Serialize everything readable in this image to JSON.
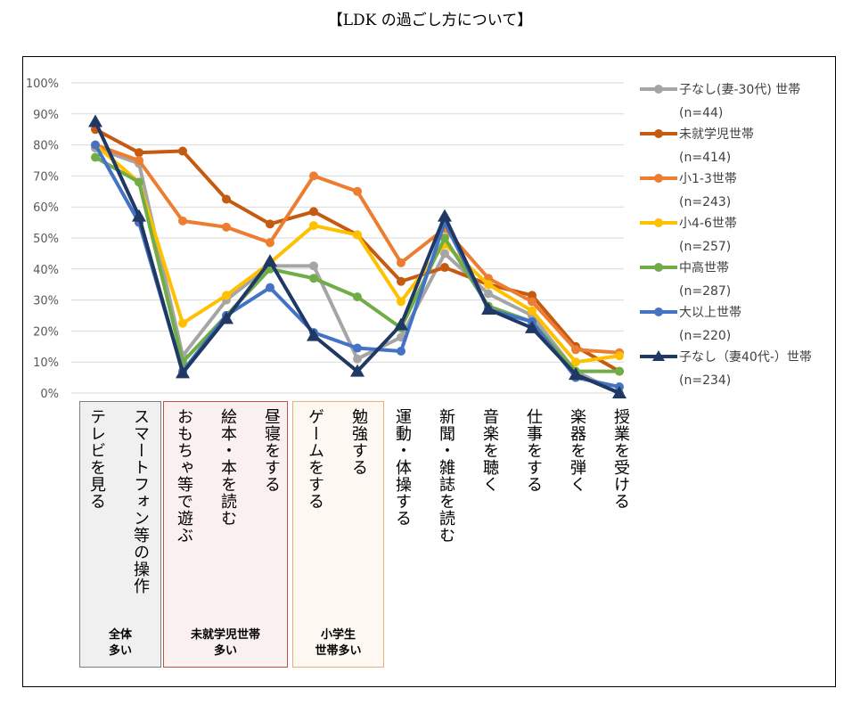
{
  "title": "【LDK の過ごし方について】",
  "groups": [
    {
      "label": "全体\n多い",
      "color": "#f0f0f0",
      "border": "#7f7f7f"
    },
    {
      "label": "未就学児世帯\n多い",
      "color": "#fbf0f0",
      "border": "#c0504d"
    },
    {
      "label": "小学生\n世帯多い",
      "color": "#fdf8f2",
      "border": "#e8b07a"
    }
  ],
  "chart_data": {
    "type": "line",
    "categories": [
      "テレビを見る",
      "スマートフォン等の操作",
      "おもちゃ等で遊ぶ",
      "絵本・本を読む",
      "昼寝をする",
      "ゲームをする",
      "勉強する",
      "運動・体操する",
      "新聞・雑誌を読む",
      "音楽を聴く",
      "仕事をする",
      "楽器を弾く",
      "授業を受ける"
    ],
    "ylim": [
      0,
      100
    ],
    "yticks": [
      "0%",
      "10%",
      "20%",
      "30%",
      "40%",
      "50%",
      "60%",
      "70%",
      "80%",
      "90%",
      "100%"
    ],
    "grid": true,
    "legend": "right",
    "series": [
      {
        "name": "子なし(妻-30代) 世帯",
        "n": "(n=44)",
        "color": "#a5a5a5",
        "marker": "circle",
        "values": [
          79,
          74,
          12,
          30,
          41,
          41,
          11,
          18,
          45,
          32,
          25,
          7,
          0
        ]
      },
      {
        "name": "未就学児世帯",
        "n": "(n=414)",
        "color": "#c55a11",
        "marker": "circle",
        "values": [
          85,
          77.5,
          78,
          62.5,
          54.5,
          58.5,
          51,
          36,
          40.5,
          35,
          31.5,
          15,
          7
        ]
      },
      {
        "name": "小1-3世帯",
        "n": "(n=243)",
        "color": "#ed7d31",
        "marker": "circle",
        "values": [
          80,
          75,
          55.5,
          53.5,
          48.5,
          70,
          65,
          42,
          53,
          37,
          29.5,
          14,
          13
        ]
      },
      {
        "name": "小4-6世帯",
        "n": "(n=257)",
        "color": "#ffc000",
        "marker": "circle",
        "values": [
          80,
          68,
          22.5,
          31.5,
          42,
          54,
          51,
          29.5,
          48,
          35,
          26.5,
          10,
          12
        ]
      },
      {
        "name": "中高世帯",
        "n": "(n=287)",
        "color": "#70ad47",
        "marker": "circle",
        "values": [
          76,
          68,
          10,
          25,
          40,
          37,
          31,
          21,
          50,
          28,
          23,
          7,
          7
        ]
      },
      {
        "name": "大以上世帯",
        "n": "(n=220)",
        "color": "#4472c4",
        "marker": "circle",
        "values": [
          80,
          55,
          7,
          25,
          34,
          19.5,
          14.5,
          13.5,
          55,
          27,
          23,
          5,
          2
        ]
      },
      {
        "name": "子なし（妻40代-）世帯",
        "n": "(n=234)",
        "color": "#203864",
        "marker": "triangle",
        "values": [
          87.5,
          57,
          6.5,
          24,
          42.5,
          18.5,
          7,
          22,
          57,
          27,
          21,
          6,
          0
        ]
      }
    ]
  }
}
